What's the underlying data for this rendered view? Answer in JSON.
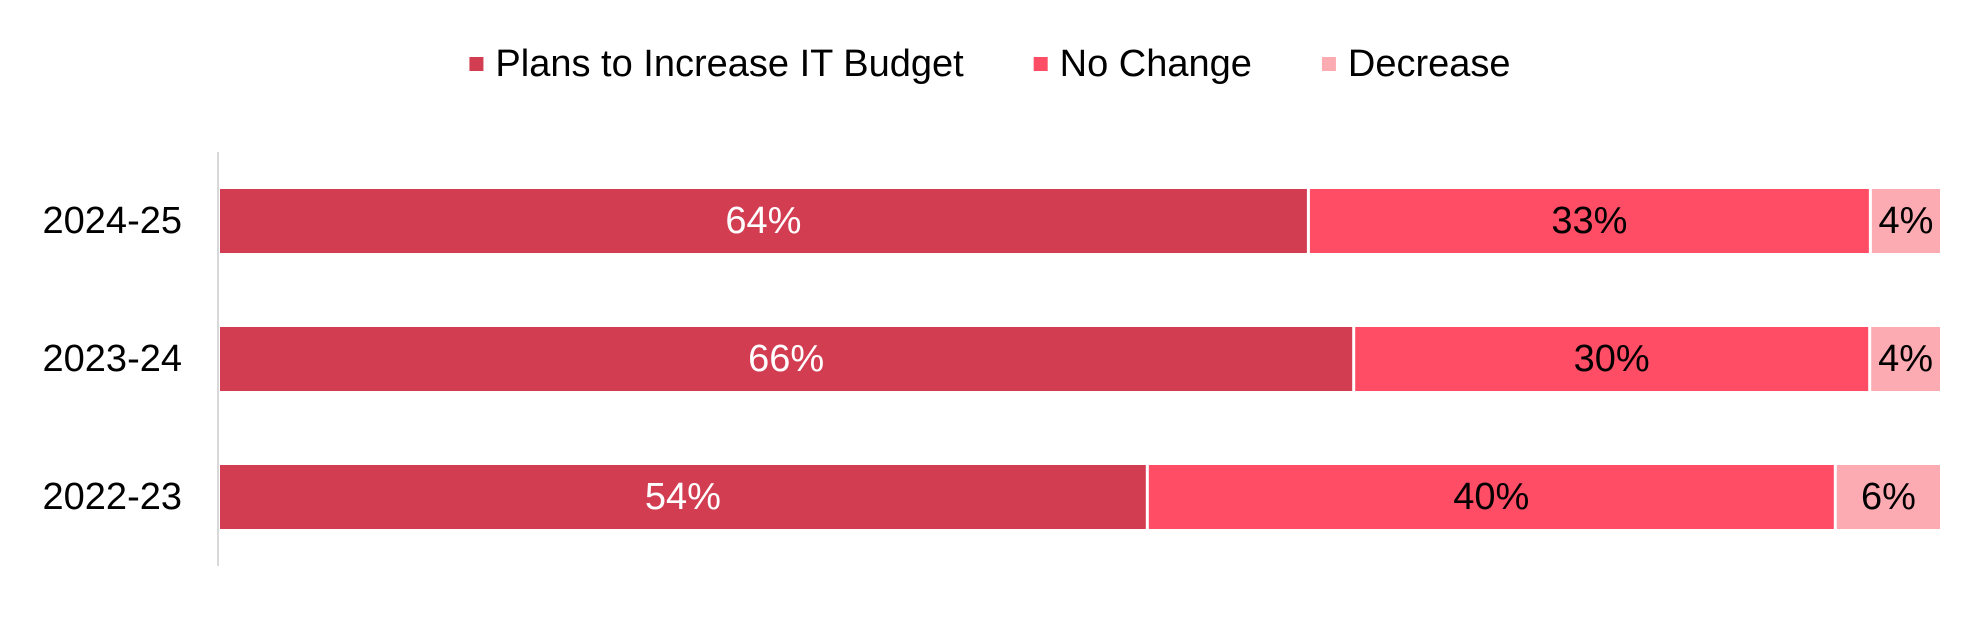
{
  "chart_data": {
    "type": "bar",
    "orientation": "horizontal",
    "stacked": true,
    "title": "",
    "xlabel": "",
    "ylabel": "",
    "xlim": [
      0,
      100
    ],
    "grid": false,
    "legend_position": "top-center",
    "categories": [
      "2024-25",
      "2023-24",
      "2022-23"
    ],
    "series": [
      {
        "name": "Plans to Increase IT Budget",
        "color": "#D33D52",
        "label_color": "#FFFFFF",
        "values": [
          64,
          66,
          54
        ],
        "labels": [
          "64%",
          "66%",
          "54%"
        ]
      },
      {
        "name": "No Change",
        "color": "#FF4D66",
        "label_color": "#000000",
        "values": [
          33,
          30,
          40
        ],
        "labels": [
          "33%",
          "30%",
          "40%"
        ]
      },
      {
        "name": "Decrease",
        "color": "#FDABB2",
        "label_color": "#000000",
        "values": [
          4,
          4,
          6
        ],
        "labels": [
          "4%",
          "4%",
          "6%"
        ]
      }
    ]
  }
}
